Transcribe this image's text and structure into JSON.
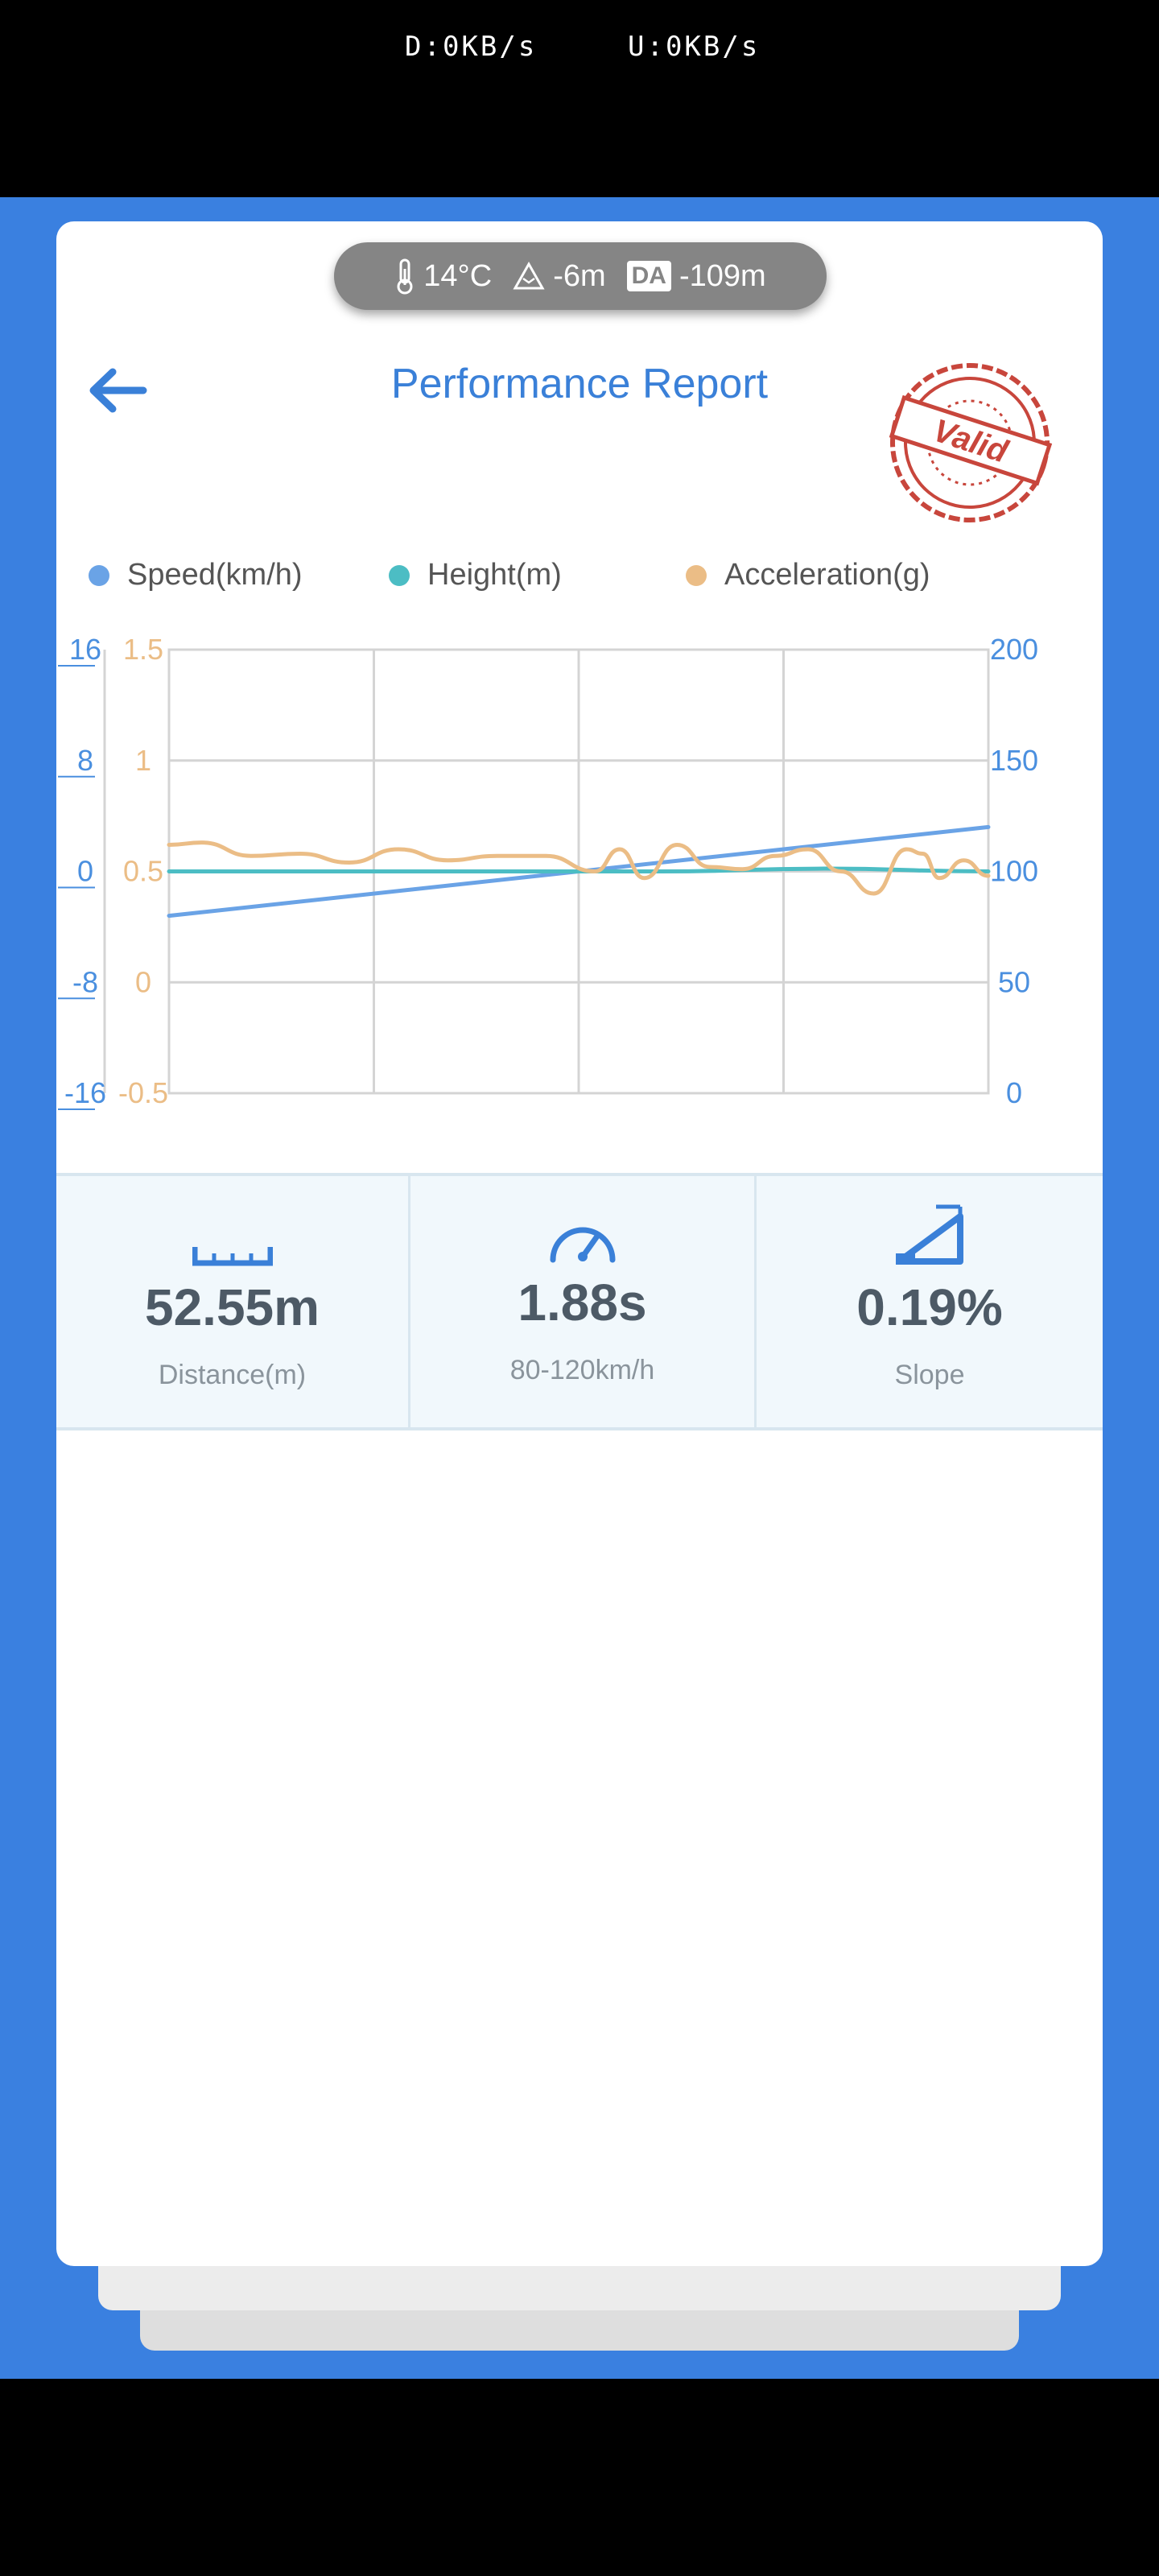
{
  "status_bar": {
    "download": "D:0KB/s",
    "upload": "U:0KB/s"
  },
  "environment": {
    "temperature": "14°C",
    "altitude": "-6m",
    "da_badge": "DA",
    "density_altitude": "-109m"
  },
  "header": {
    "title": "Performance Report",
    "stamp_text": "Valid"
  },
  "legend": [
    {
      "label": "Speed(km/h)",
      "color": "#6aa3e6"
    },
    {
      "label": "Height(m)",
      "color": "#4cbdc4"
    },
    {
      "label": "Acceleration(g)",
      "color": "#ebbd86"
    }
  ],
  "chart_data": {
    "type": "line",
    "axes": {
      "left_outer": {
        "ticks": [
          "16",
          "8",
          "0",
          "-8",
          "-16"
        ],
        "color": "#4a8fdf",
        "range": [
          -16,
          16
        ]
      },
      "left_inner": {
        "ticks": [
          "1.5",
          "1",
          "0.5",
          "0",
          "-0.5"
        ],
        "color": "#ebbd86",
        "range": [
          -0.5,
          1.5
        ]
      },
      "right": {
        "ticks": [
          "200",
          "150",
          "100",
          "50",
          "0"
        ],
        "color": "#4a8fdf",
        "range": [
          0,
          200
        ]
      }
    },
    "grid": true,
    "series": [
      {
        "name": "Speed(km/h)",
        "axis": "right",
        "color": "#6aa3e6",
        "x": [
          0,
          1
        ],
        "values": [
          80,
          120
        ]
      },
      {
        "name": "Height(m)",
        "axis": "left_outer",
        "color": "#4cbdc4",
        "x": [
          0,
          0.6,
          0.8,
          1
        ],
        "values": [
          0,
          0,
          0.2,
          0
        ]
      },
      {
        "name": "Acceleration(g)",
        "axis": "left_inner",
        "color": "#ebbd86",
        "x": [
          0,
          0.04,
          0.1,
          0.16,
          0.22,
          0.28,
          0.34,
          0.4,
          0.46,
          0.52,
          0.55,
          0.58,
          0.62,
          0.66,
          0.7,
          0.74,
          0.78,
          0.82,
          0.86,
          0.9,
          0.92,
          0.94,
          0.97,
          1.0
        ],
        "values": [
          0.62,
          0.63,
          0.57,
          0.58,
          0.54,
          0.6,
          0.55,
          0.57,
          0.57,
          0.5,
          0.6,
          0.47,
          0.62,
          0.52,
          0.51,
          0.57,
          0.6,
          0.5,
          0.4,
          0.6,
          0.58,
          0.47,
          0.55,
          0.48
        ]
      }
    ]
  },
  "stats": [
    {
      "icon": "ruler-icon",
      "value": "52.55m",
      "label": "Distance(m)"
    },
    {
      "icon": "speedometer-icon",
      "value": "1.88s",
      "label": "80-120km/h"
    },
    {
      "icon": "slope-icon",
      "value": "0.19%",
      "label": "Slope"
    }
  ]
}
